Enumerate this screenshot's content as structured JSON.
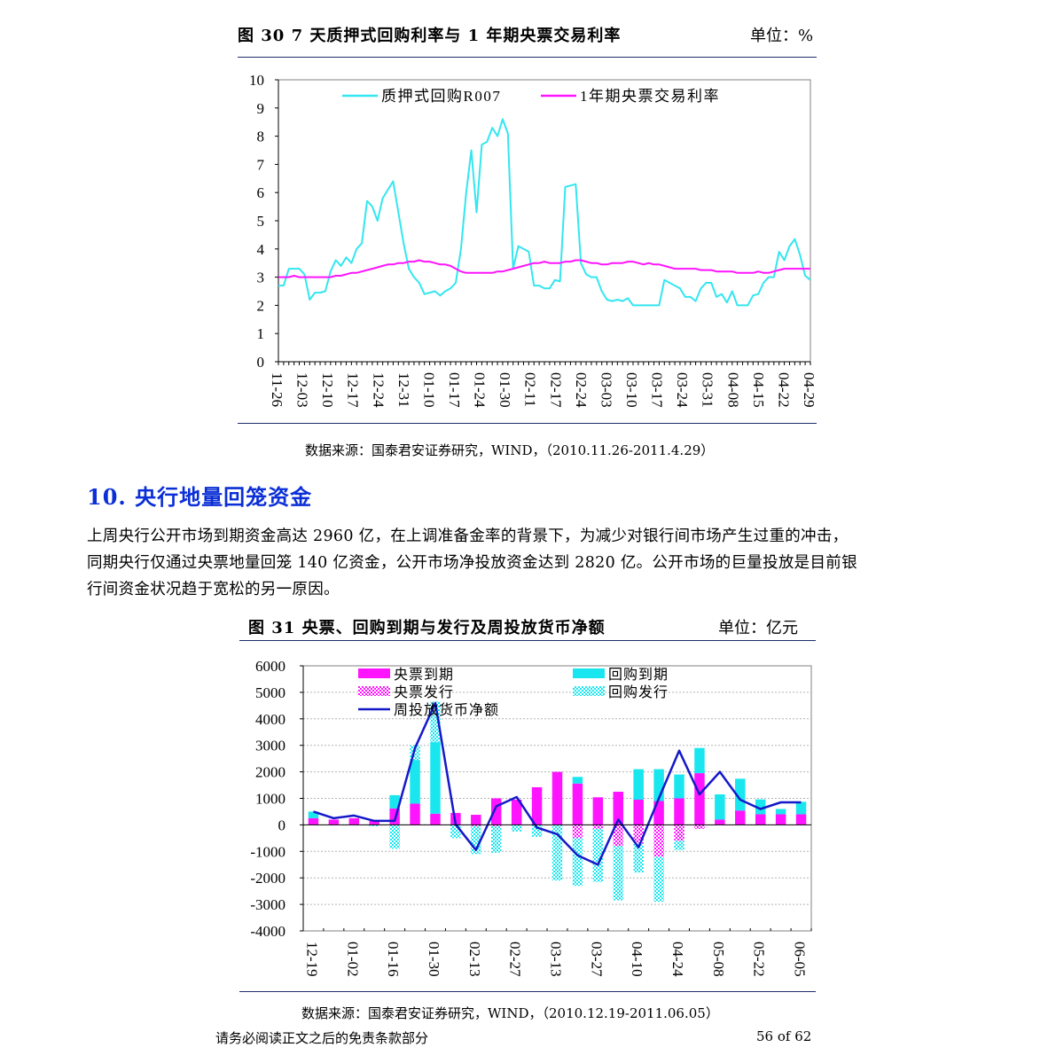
{
  "figure30": {
    "title": "图  30 7 天质押式回购利率与 1 年期央票交易利率",
    "unit": "单位：%",
    "source": "数据来源：国泰君安证券研究，WIND，（2010.11.26-2011.4.29）",
    "chart_data": {
      "type": "line",
      "ylim": [
        0,
        10
      ],
      "y_ticks": [
        "0",
        "1",
        "2",
        "3",
        "4",
        "5",
        "6",
        "7",
        "8",
        "9",
        "10"
      ],
      "x_tick_labels": [
        "11-26",
        "12-03",
        "12-10",
        "12-17",
        "12-24",
        "12-31",
        "01-10",
        "01-17",
        "01-24",
        "01-30",
        "02-11",
        "02-17",
        "02-24",
        "03-03",
        "03-10",
        "03-17",
        "03-24",
        "03-31",
        "04-08",
        "04-15",
        "04-22",
        "04-29"
      ],
      "legend_position": "top",
      "series": [
        {
          "name": "质押式回购R007",
          "color": "#33e6f0",
          "values": [
            2.7,
            2.7,
            3.3,
            3.3,
            3.3,
            3.1,
            2.2,
            2.45,
            2.45,
            2.5,
            3.2,
            3.6,
            3.4,
            3.7,
            3.5,
            4.0,
            4.2,
            5.7,
            5.5,
            5.0,
            5.8,
            6.1,
            6.4,
            5.3,
            4.2,
            3.3,
            3.0,
            2.8,
            2.4,
            2.45,
            2.5,
            2.35,
            2.5,
            2.6,
            2.8,
            4.0,
            6.0,
            7.5,
            5.3,
            7.7,
            7.8,
            8.3,
            8.0,
            8.6,
            8.1,
            3.3,
            4.1,
            4.0,
            3.9,
            2.7,
            2.7,
            2.6,
            2.6,
            2.9,
            2.85,
            6.2,
            6.25,
            6.3,
            3.5,
            3.1,
            3.0,
            3.0,
            2.5,
            2.2,
            2.15,
            2.2,
            2.15,
            2.25,
            2.0,
            2.0,
            2.0,
            2.0,
            2.0,
            2.0,
            2.9,
            2.8,
            2.7,
            2.6,
            2.3,
            2.3,
            2.15,
            2.6,
            2.8,
            2.8,
            2.3,
            2.4,
            2.1,
            2.5,
            2.0,
            2.0,
            2.0,
            2.35,
            2.4,
            2.8,
            3.0,
            3.0,
            3.9,
            3.6,
            4.1,
            4.35,
            3.8,
            3.05,
            2.9
          ]
        },
        {
          "name": "1年期央票交易利率",
          "color": "#ff14ff",
          "values": [
            3.0,
            3.0,
            3.0,
            3.05,
            3.0,
            3.0,
            3.0,
            3.0,
            3.0,
            3.0,
            3.0,
            3.05,
            3.05,
            3.1,
            3.15,
            3.15,
            3.2,
            3.25,
            3.3,
            3.35,
            3.4,
            3.45,
            3.45,
            3.5,
            3.5,
            3.55,
            3.55,
            3.6,
            3.55,
            3.55,
            3.5,
            3.45,
            3.45,
            3.4,
            3.3,
            3.2,
            3.15,
            3.15,
            3.15,
            3.15,
            3.15,
            3.15,
            3.2,
            3.2,
            3.25,
            3.3,
            3.35,
            3.4,
            3.45,
            3.5,
            3.5,
            3.55,
            3.5,
            3.5,
            3.5,
            3.55,
            3.55,
            3.6,
            3.6,
            3.55,
            3.5,
            3.5,
            3.45,
            3.45,
            3.5,
            3.5,
            3.5,
            3.55,
            3.55,
            3.5,
            3.45,
            3.5,
            3.45,
            3.45,
            3.4,
            3.35,
            3.3,
            3.3,
            3.3,
            3.3,
            3.3,
            3.25,
            3.25,
            3.25,
            3.2,
            3.2,
            3.2,
            3.2,
            3.15,
            3.15,
            3.15,
            3.15,
            3.2,
            3.15,
            3.15,
            3.2,
            3.25,
            3.3,
            3.3,
            3.3,
            3.3,
            3.3,
            3.3
          ]
        }
      ]
    }
  },
  "section10": {
    "heading": "10. 央行地量回笼资金",
    "paragraph_lines": [
      "上周央行公开市场到期资金高达 2960 亿，在上调准备金率的背景下，为减少对银行间市场产生过重的冲击，",
      "同期央行仅通过央票地量回笼 140 亿资金，公开市场净投放资金达到 2820 亿。公开市场的巨量投放是目前银",
      "行间资金状况趋于宽松的另一原因。"
    ]
  },
  "figure31": {
    "title": "图  31 央票、回购到期与发行及周投放货币净额",
    "unit": "单位：亿元",
    "source": "数据来源：国泰君安证券研究，WIND，（2010.12.19-2011.06.05）",
    "chart_data": {
      "type": "bar",
      "ylim": [
        -4000,
        6000
      ],
      "y_ticks": [
        "6000",
        "5000",
        "4000",
        "3000",
        "2000",
        "1000",
        "0",
        "-1000",
        "-2000",
        "-3000",
        "-4000"
      ],
      "x_tick_labels": [
        "12-19",
        "01-02",
        "01-16",
        "01-30",
        "02-13",
        "02-27",
        "03-13",
        "03-27",
        "04-10",
        "04-24",
        "05-08",
        "05-22",
        "06-05"
      ],
      "legend_position": "top",
      "weeks": 25,
      "series": [
        {
          "name": "央票到期",
          "color": "#ff14ff",
          "style": "solid",
          "values": [
            250,
            200,
            250,
            150,
            620,
            800,
            420,
            450,
            380,
            1000,
            950,
            1420,
            2000,
            1560,
            1040,
            1250,
            950,
            900,
            1000,
            1950,
            200,
            540,
            400,
            400,
            400
          ]
        },
        {
          "name": "回购到期",
          "color": "#19e6ee",
          "style": "solid",
          "values": [
            250,
            0,
            0,
            0,
            500,
            1650,
            2700,
            0,
            0,
            0,
            0,
            0,
            0,
            250,
            0,
            0,
            1150,
            1200,
            900,
            950,
            950,
            1200,
            560,
            200,
            470
          ]
        },
        {
          "name": "央票发行",
          "color": "#ff14ff",
          "style": "hatched",
          "values": [
            0,
            0,
            0,
            0,
            0,
            0,
            0,
            0,
            -50,
            -50,
            0,
            0,
            0,
            -500,
            -150,
            -800,
            -700,
            -1200,
            -600,
            -150,
            0,
            0,
            0,
            0,
            0
          ]
        },
        {
          "name": "回购发行",
          "color": "#19e6ee",
          "style": "hatched",
          "values": [
            0,
            0,
            0,
            -50,
            -900,
            550,
            1530,
            -500,
            -1050,
            -1000,
            -250,
            -450,
            -2100,
            -1800,
            -2000,
            -2050,
            -1100,
            -1700,
            -350,
            0,
            0,
            0,
            0,
            0,
            0
          ]
        },
        {
          "name": "周投放货币净额",
          "color": "#1419c8",
          "style": "line",
          "values": [
            500,
            250,
            350,
            150,
            150,
            2900,
            4600,
            20,
            -950,
            700,
            1050,
            -100,
            -350,
            -1150,
            -1500,
            200,
            -850,
            1000,
            2800,
            1150,
            2000,
            950,
            600,
            850,
            850
          ]
        }
      ]
    }
  },
  "footer": {
    "disclaimer": "请务必阅读正文之后的免责条款部分",
    "page": "56 of 62"
  }
}
